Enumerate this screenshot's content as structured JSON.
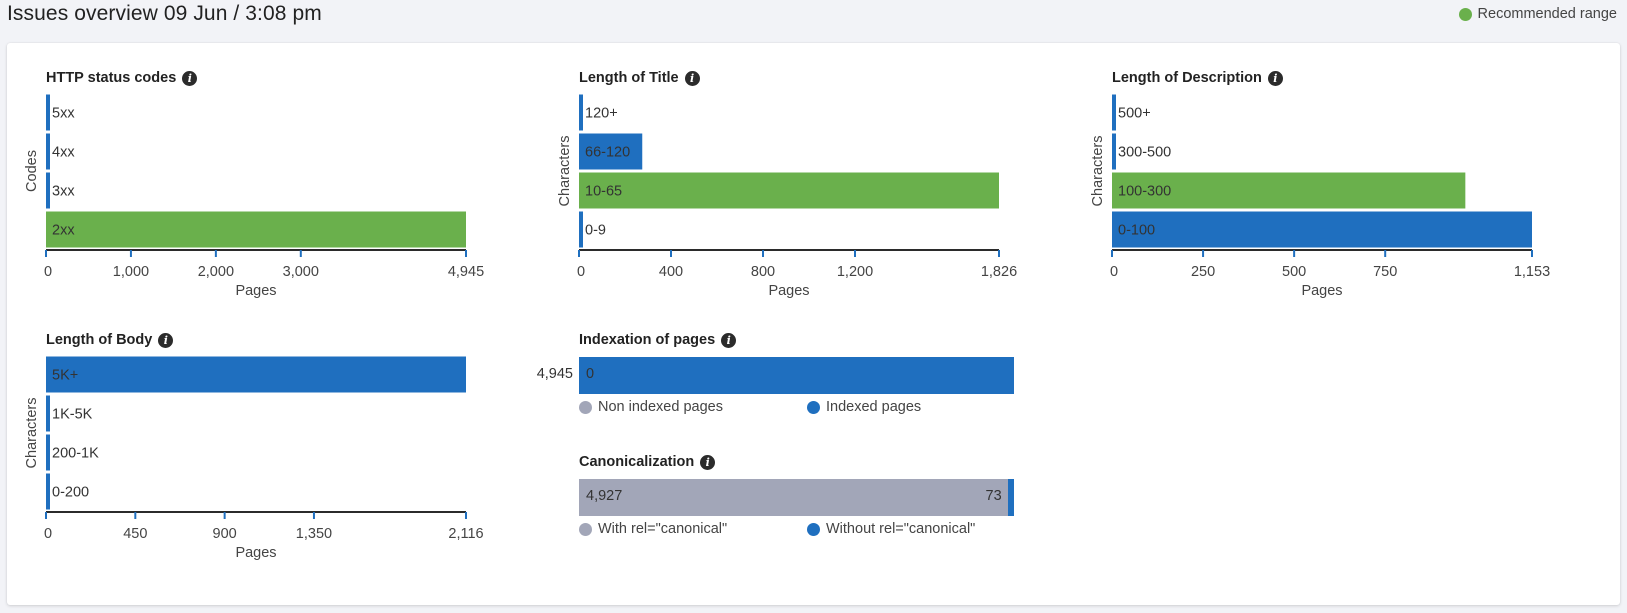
{
  "header": {
    "title": "Issues overview 09 Jun / 3:08 pm",
    "legend_label": "Recommended range",
    "legend_color": "#6ab04c"
  },
  "colors": {
    "blue": "#1f6fbf",
    "green": "#6ab04c",
    "gray": "#a2a6b8"
  },
  "info_icon": "info-icon",
  "chart_data": [
    {
      "type": "bar",
      "orientation": "horizontal",
      "title": "HTTP status codes",
      "ylabel": "Codes",
      "xlabel": "Pages",
      "categories": [
        "5xx",
        "4xx",
        "3xx",
        "2xx"
      ],
      "values": [
        0,
        0,
        0,
        4945
      ],
      "recommended": [
        false,
        false,
        false,
        true
      ],
      "xlim": [
        0,
        4945
      ],
      "xticks": [
        0,
        1000,
        2000,
        3000,
        4945
      ],
      "xtick_labels": [
        "0",
        "1,000",
        "2,000",
        "3,000",
        "4,945"
      ]
    },
    {
      "type": "bar",
      "orientation": "horizontal",
      "title": "Length of Title",
      "ylabel": "Characters",
      "xlabel": "Pages",
      "categories": [
        "120+",
        "66-120",
        "10-65",
        "0-9"
      ],
      "values": [
        0,
        275,
        1826,
        0
      ],
      "recommended": [
        false,
        false,
        true,
        false
      ],
      "xlim": [
        0,
        1826
      ],
      "xticks": [
        0,
        400,
        800,
        1200,
        1826
      ],
      "xtick_labels": [
        "0",
        "400",
        "800",
        "1,200",
        "1,826"
      ]
    },
    {
      "type": "bar",
      "orientation": "horizontal",
      "title": "Length of Description",
      "ylabel": "Characters",
      "xlabel": "Pages",
      "categories": [
        "500+",
        "300-500",
        "100-300",
        "0-100"
      ],
      "values": [
        0,
        0,
        970,
        1153
      ],
      "recommended": [
        false,
        false,
        true,
        false
      ],
      "xlim": [
        0,
        1153
      ],
      "xticks": [
        0,
        250,
        500,
        750,
        1153
      ],
      "xtick_labels": [
        "0",
        "250",
        "500",
        "750",
        "1,153"
      ]
    },
    {
      "type": "bar",
      "orientation": "horizontal",
      "title": "Length of Body",
      "ylabel": "Characters",
      "xlabel": "Pages",
      "categories": [
        "5K+",
        "1K-5K",
        "200-1K",
        "0-200"
      ],
      "values": [
        2116,
        0,
        0,
        0
      ],
      "recommended": [
        false,
        false,
        false,
        false
      ],
      "xlim": [
        0,
        2116
      ],
      "xticks": [
        0,
        450,
        900,
        1350,
        2116
      ],
      "xtick_labels": [
        "0",
        "450",
        "900",
        "1,350",
        "2,116"
      ]
    },
    {
      "type": "bar",
      "orientation": "stacked-horizontal",
      "title": "Indexation of pages",
      "series": [
        {
          "name": "Non indexed pages",
          "value": 0,
          "value_label": "0",
          "color": "#a2a6b8"
        },
        {
          "name": "Indexed pages",
          "value": 4945,
          "value_label": "4,945",
          "color": "#1f6fbf"
        }
      ]
    },
    {
      "type": "bar",
      "orientation": "stacked-horizontal",
      "title": "Canonicalization",
      "series": [
        {
          "name": "With rel=\"canonical\"",
          "value": 4927,
          "value_label": "4,927",
          "color": "#a2a6b8"
        },
        {
          "name": "Without rel=\"canonical\"",
          "value": 73,
          "value_label": "73",
          "color": "#1f6fbf"
        }
      ]
    }
  ]
}
